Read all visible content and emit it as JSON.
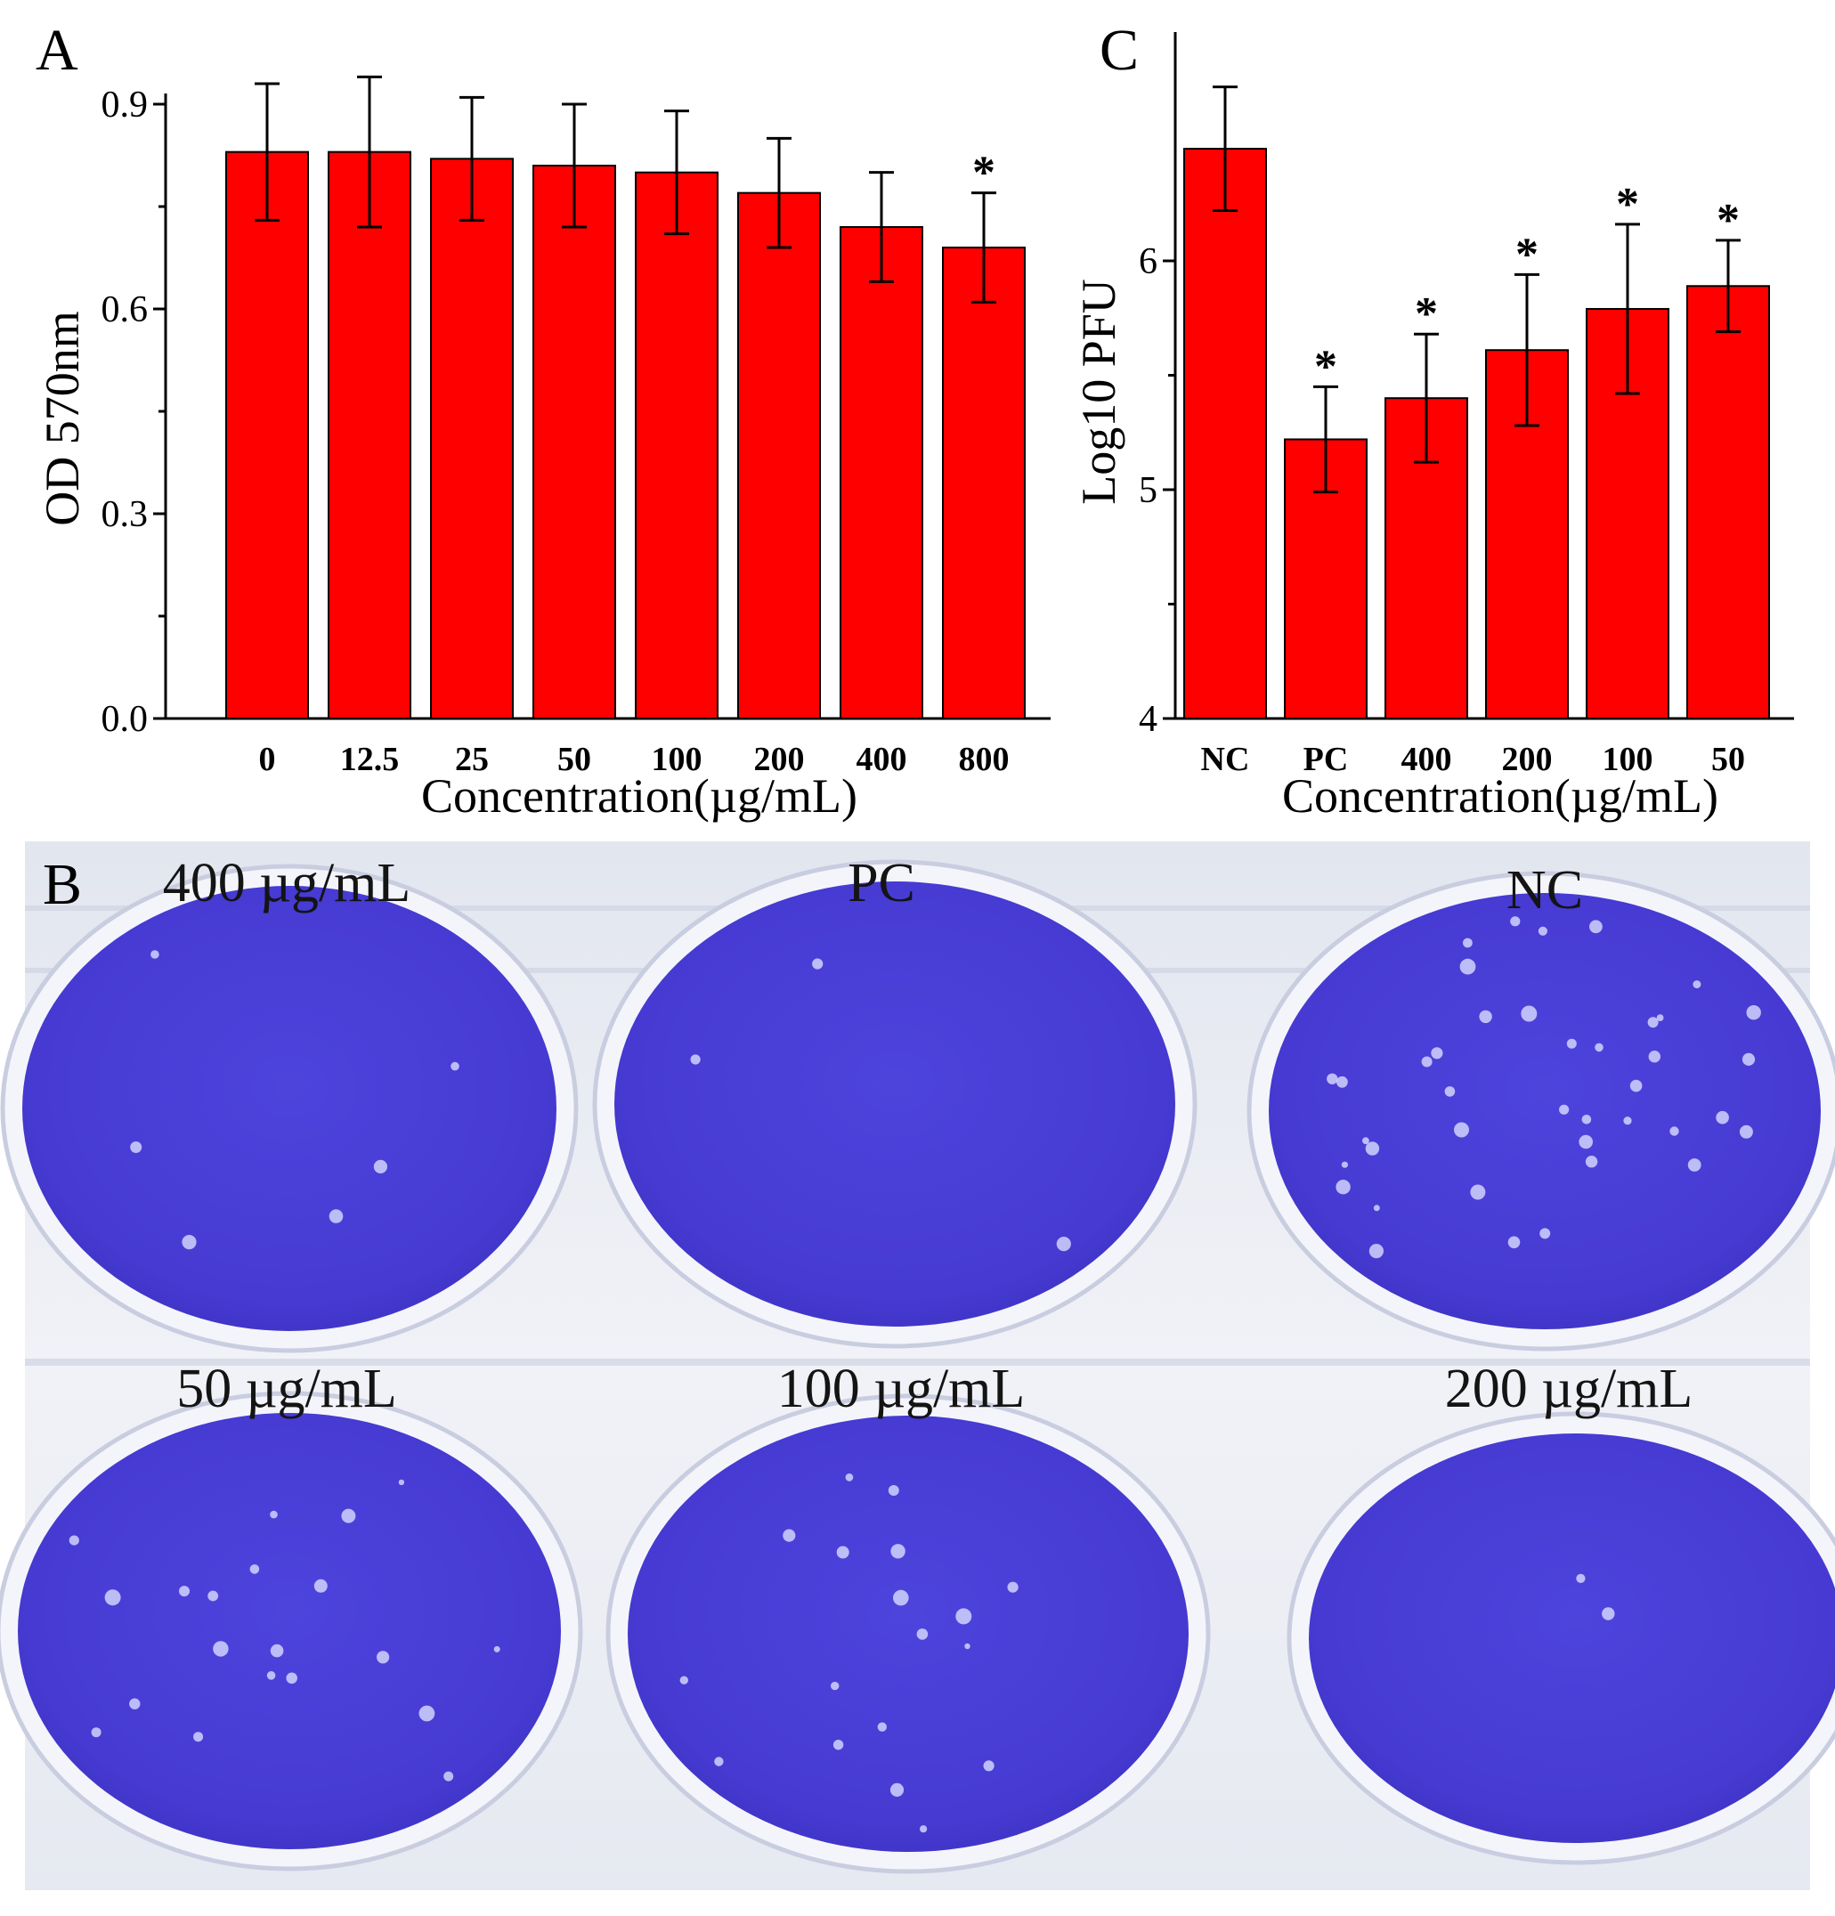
{
  "colors": {
    "bar": "#ff0000",
    "plate_background": "#eceff6",
    "well_stain": "#4a3fd8",
    "plaque": "#d9dcff"
  },
  "panels": {
    "a": {
      "letter": "A"
    },
    "b": {
      "letter": "B",
      "well_labels": [
        "400 µg/mL",
        "PC",
        "NC",
        "50 µg/mL",
        "100 µg/mL",
        "200 µg/mL"
      ]
    },
    "c": {
      "letter": "C"
    }
  },
  "chart_data": [
    {
      "panel": "A",
      "type": "bar",
      "xlabel": "Concentration(µg/mL)",
      "ylabel": "OD 570nm",
      "categories": [
        "0",
        "12.5",
        "25",
        "50",
        "100",
        "200",
        "400",
        "800"
      ],
      "values": [
        0.83,
        0.83,
        0.82,
        0.81,
        0.8,
        0.77,
        0.72,
        0.69
      ],
      "errors": [
        0.1,
        0.11,
        0.09,
        0.09,
        0.09,
        0.08,
        0.08,
        0.08
      ],
      "significant": [
        false,
        false,
        false,
        false,
        false,
        false,
        false,
        true
      ],
      "significance_marker": "*",
      "ylim": [
        0.0,
        0.9
      ],
      "yticks": [
        "0.0",
        "0.3",
        "0.6",
        "0.9"
      ]
    },
    {
      "panel": "C",
      "type": "bar",
      "xlabel": "Concentration(µg/mL)",
      "ylabel": "Log10 PFU",
      "categories": [
        "NC",
        "PC",
        "400",
        "200",
        "100",
        "50"
      ],
      "values": [
        6.49,
        5.22,
        5.4,
        5.61,
        5.79,
        5.89
      ],
      "errors": [
        0.27,
        0.23,
        0.28,
        0.33,
        0.37,
        0.2
      ],
      "significant": [
        false,
        true,
        true,
        true,
        true,
        true
      ],
      "significance_marker": "*",
      "ylim": [
        4,
        7
      ],
      "yticks": [
        "4",
        "5",
        "6"
      ]
    }
  ]
}
